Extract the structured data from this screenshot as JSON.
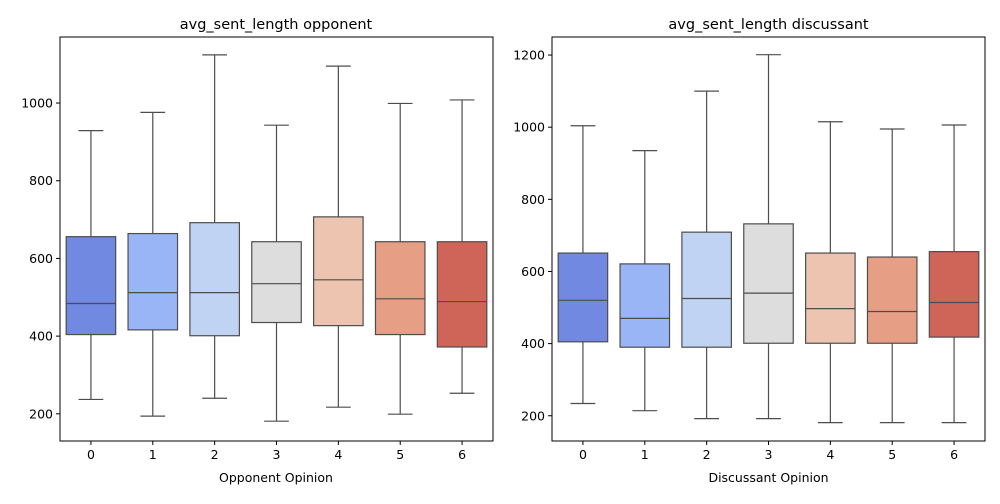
{
  "chart_data": [
    {
      "type": "box",
      "title": "avg_sent_length opponent",
      "xlabel": "Opponent Opinion",
      "ylabel": "",
      "categories": [
        "0",
        "1",
        "2",
        "3",
        "4",
        "5",
        "6"
      ],
      "ylim": [
        130,
        1170
      ],
      "yticks": [
        200,
        400,
        600,
        800,
        1000
      ],
      "boxes": [
        {
          "min": 237,
          "q1": 404,
          "median": 484,
          "q3": 656,
          "max": 929,
          "color": "#7189e0"
        },
        {
          "min": 194,
          "q1": 416,
          "median": 512,
          "q3": 664,
          "max": 976,
          "color": "#99b5f5"
        },
        {
          "min": 240,
          "q1": 401,
          "median": 512,
          "q3": 692,
          "max": 1124,
          "color": "#c1d3f2"
        },
        {
          "min": 181,
          "q1": 435,
          "median": 535,
          "q3": 643,
          "max": 943,
          "color": "#dddddd"
        },
        {
          "min": 217,
          "q1": 427,
          "median": 545,
          "q3": 707,
          "max": 1095,
          "color": "#edc4b0"
        },
        {
          "min": 199,
          "q1": 404,
          "median": 496,
          "q3": 643,
          "max": 999,
          "color": "#e69e84"
        },
        {
          "min": 253,
          "q1": 372,
          "median": 489,
          "q3": 643,
          "max": 1008,
          "color": "#cf6458"
        }
      ]
    },
    {
      "type": "box",
      "title": "avg_sent_length discussant",
      "xlabel": "Discussant Opinion",
      "ylabel": "",
      "categories": [
        "0",
        "1",
        "2",
        "3",
        "4",
        "5",
        "6"
      ],
      "ylim": [
        130,
        1250
      ],
      "yticks": [
        200,
        400,
        600,
        800,
        1000,
        1200
      ],
      "boxes": [
        {
          "min": 234,
          "q1": 405,
          "median": 520,
          "q3": 651,
          "max": 1004,
          "color": "#7189e0"
        },
        {
          "min": 214,
          "q1": 390,
          "median": 470,
          "q3": 621,
          "max": 935,
          "color": "#99b5f5"
        },
        {
          "min": 192,
          "q1": 390,
          "median": 525,
          "q3": 709,
          "max": 1100,
          "color": "#c1d3f2"
        },
        {
          "min": 192,
          "q1": 401,
          "median": 540,
          "q3": 732,
          "max": 1201,
          "color": "#dddddd"
        },
        {
          "min": 181,
          "q1": 401,
          "median": 497,
          "q3": 651,
          "max": 1015,
          "color": "#edc4b0"
        },
        {
          "min": 181,
          "q1": 401,
          "median": 489,
          "q3": 640,
          "max": 995,
          "color": "#e69e84"
        },
        {
          "min": 181,
          "q1": 418,
          "median": 514,
          "q3": 655,
          "max": 1006,
          "color": "#cf6458"
        }
      ]
    }
  ]
}
